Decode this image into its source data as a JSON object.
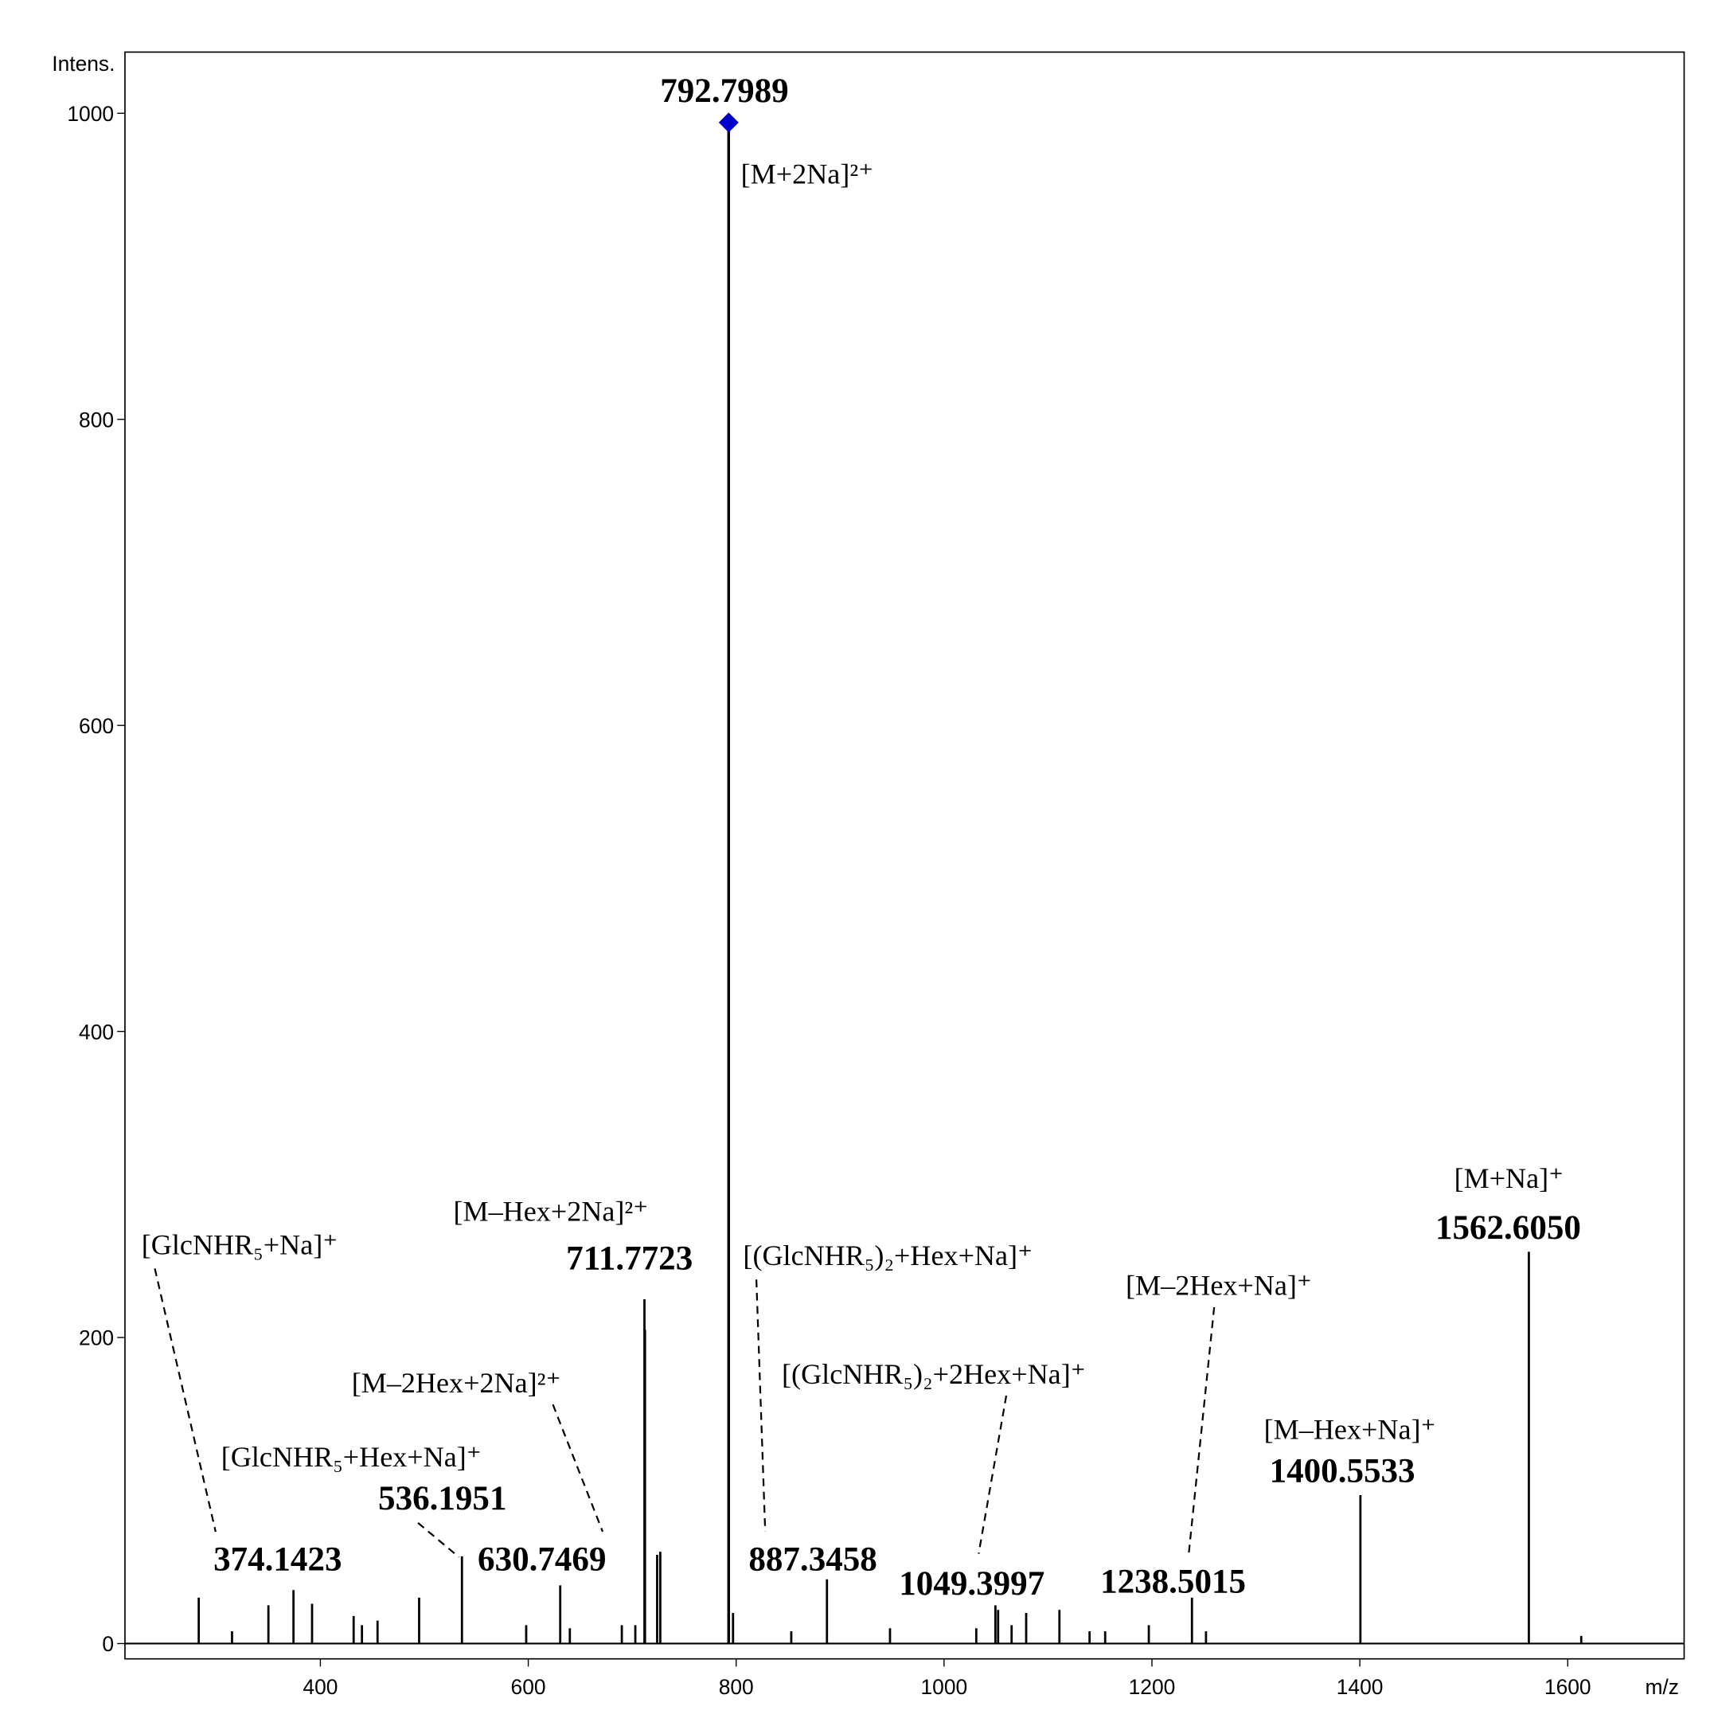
{
  "chart_data": {
    "type": "spectrum",
    "y_label": "Intens.",
    "x_label": "m/z",
    "xlim": [
      212,
      1712
    ],
    "ylim": [
      -10,
      1040
    ],
    "xticks": [
      400,
      600,
      800,
      1000,
      1200,
      1400,
      1600
    ],
    "yticks": [
      0,
      200,
      400,
      600,
      800,
      1000
    ],
    "color": "#000000",
    "marker_color": "#0000cc",
    "x": [
      283,
      315,
      350,
      374.1423,
      392,
      432,
      440,
      455,
      495,
      536.1951,
      598,
      630.7469,
      640,
      690,
      703,
      711.7723,
      712.3,
      724,
      727,
      792.7989,
      797,
      853,
      887.3458,
      948,
      1031,
      1049.3997,
      1052,
      1065,
      1079,
      1111,
      1140,
      1155,
      1197,
      1238.5015,
      1252,
      1400.5533,
      1562.605,
      1613
    ],
    "values": [
      30,
      8,
      25,
      35,
      26,
      18,
      12,
      15,
      30,
      57,
      12,
      38,
      10,
      12,
      12,
      225,
      205,
      58,
      60,
      994,
      20,
      8,
      42,
      10,
      10,
      25,
      22,
      12,
      20,
      22,
      8,
      8,
      12,
      30,
      8,
      97,
      256,
      5
    ],
    "marked_peak": 19,
    "annotations": [
      {
        "x": 374.1423,
        "label": "374.1423",
        "ion": "[GlcNHR₅+Na]⁺"
      },
      {
        "x": 536.1951,
        "label": "536.1951",
        "ion": "[GlcNHR₅+Hex+Na]⁺"
      },
      {
        "x": 630.7469,
        "label": "630.7469",
        "ion": "[M–2Hex+2Na]²⁺"
      },
      {
        "x": 711.7723,
        "label": "711.7723",
        "ion": "[M–Hex+2Na]²⁺"
      },
      {
        "x": 792.7989,
        "label": "792.7989",
        "ion": "[M+2Na]²⁺"
      },
      {
        "x": 887.3458,
        "label": "887.3458",
        "ion": "[(GlcNHR₅)₂+Hex+Na]⁺"
      },
      {
        "x": 1049.3997,
        "label": "1049.3997",
        "ion": "[(GlcNHR₅)₂+2Hex+Na]⁺"
      },
      {
        "x": 1238.5015,
        "label": "1238.5015",
        "ion": "[M–2Hex+Na]⁺"
      },
      {
        "x": 1400.5533,
        "label": "1400.5533",
        "ion": "[M–Hex+Na]⁺"
      },
      {
        "x": 1562.605,
        "label": "1562.6050",
        "ion": "[M+Na]⁺"
      }
    ]
  }
}
